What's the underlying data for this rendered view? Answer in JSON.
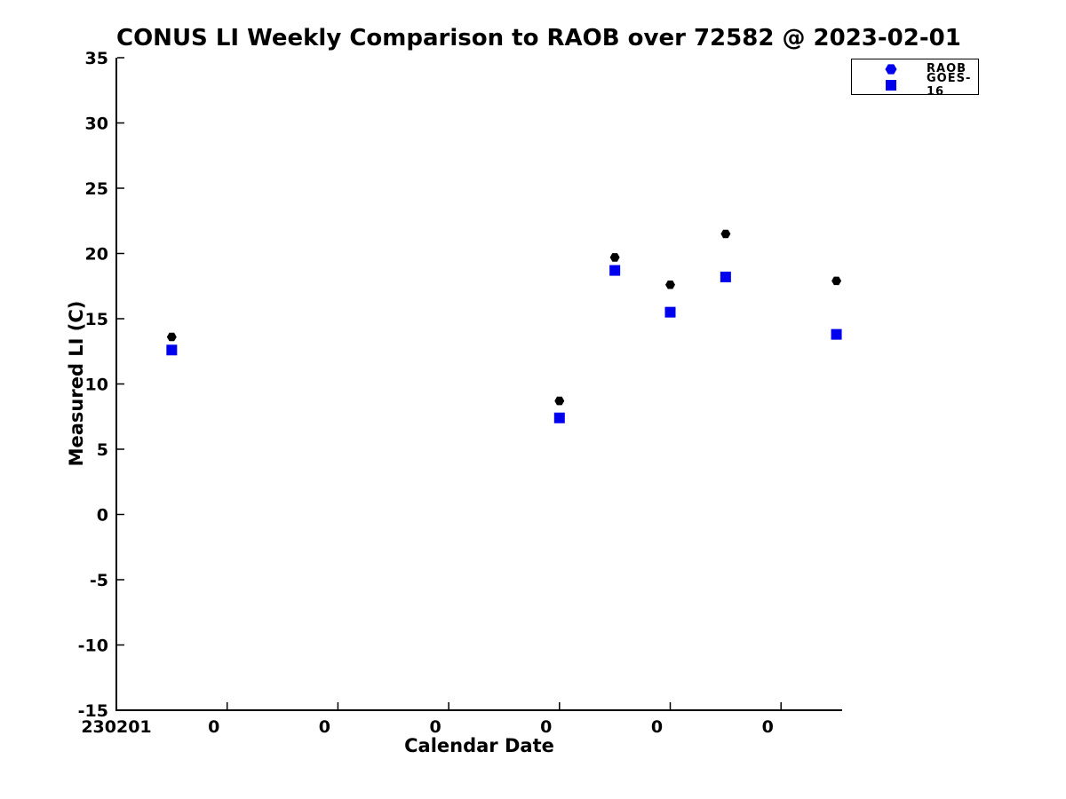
{
  "chart_data": {
    "type": "scatter",
    "title": "CONUS LI Weekly Comparison to RAOB over 72582 @ 2023-02-01",
    "xlabel": "Calendar Date",
    "ylabel": "Measured LI (C)",
    "ylim": [
      -15,
      35
    ],
    "yticks": [
      35,
      30,
      25,
      20,
      15,
      10,
      5,
      0,
      -5,
      -10,
      -15
    ],
    "xlim": [
      0,
      6.55
    ],
    "xticks": [
      {
        "pos": 0,
        "label": "230201"
      },
      {
        "pos": 1,
        "label": "0"
      },
      {
        "pos": 2,
        "label": "0"
      },
      {
        "pos": 3,
        "label": "0"
      },
      {
        "pos": 4,
        "label": "0"
      },
      {
        "pos": 5,
        "label": "0"
      },
      {
        "pos": 6,
        "label": "0"
      }
    ],
    "grid": false,
    "legend_position": "top-right",
    "axis_color": "#000000",
    "series": [
      {
        "name": "RAOB",
        "marker": "hexagon",
        "color": "#000000",
        "legend_color": "#0000ee",
        "x": [
          0.5,
          4.0,
          4.5,
          5.0,
          5.5,
          6.5
        ],
        "y": [
          13.6,
          8.7,
          19.7,
          17.6,
          21.5,
          17.9
        ]
      },
      {
        "name": "GOES-16",
        "marker": "square",
        "color": "#0000ee",
        "legend_color": "#0000ee",
        "x": [
          0.5,
          4.0,
          4.5,
          5.0,
          5.5,
          6.5
        ],
        "y": [
          12.6,
          7.4,
          18.7,
          15.5,
          18.2,
          13.8
        ]
      }
    ]
  }
}
